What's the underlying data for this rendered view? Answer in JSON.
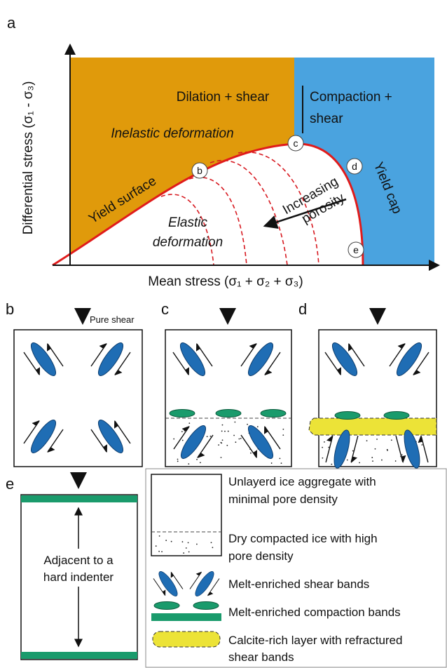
{
  "panel_a": {
    "label": "a",
    "y_axis": "Differential stress (σ₁ - σ₃)",
    "x_axis": "Mean stress (σ₁ + σ₂ + σ₃)",
    "dilation": "Dilation + shear",
    "compaction": [
      "Compaction +",
      "shear"
    ],
    "inelastic": "Inelastic deformation",
    "elastic": [
      "Elastic",
      "deformation"
    ],
    "yield_surface": "Yield surface",
    "yield_cap": "Yield cap",
    "porosity": [
      "Increasing",
      "porosity"
    ],
    "points": [
      "b",
      "c",
      "d",
      "e"
    ]
  },
  "panel_b": {
    "label": "b",
    "load": "Pure shear"
  },
  "panel_c": {
    "label": "c"
  },
  "panel_d": {
    "label": "d"
  },
  "panel_e": {
    "label": "e",
    "note": [
      "Adjacent to a",
      "hard indenter"
    ]
  },
  "legend": [
    [
      "Unlayerd ice aggregate with",
      "minimal pore density"
    ],
    [
      "Dry compacted ice with high",
      "pore density"
    ],
    [
      "Melt-enriched shear bands"
    ],
    [
      "Melt-enriched compaction bands"
    ],
    [
      "Calcite-rich layer with refractured",
      "shear bands"
    ]
  ]
}
